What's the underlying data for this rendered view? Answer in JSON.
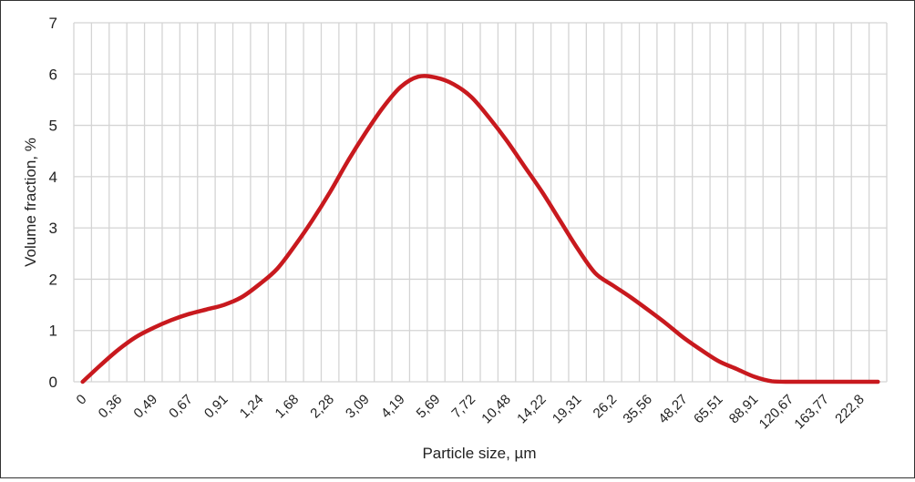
{
  "chart_data": {
    "type": "line",
    "title": "",
    "xlabel": "Particle size, µm",
    "ylabel": "Volume fraction, %",
    "ylim": [
      0,
      7
    ],
    "yticks": [
      "0",
      "1",
      "2",
      "3",
      "4",
      "5",
      "6",
      "7"
    ],
    "grid": true,
    "legend": "none",
    "tick_labels": [
      "0",
      "0,36",
      "0,49",
      "0,67",
      "0,91",
      "1,24",
      "1,68",
      "2,28",
      "3,09",
      "4,19",
      "5,69",
      "7,72",
      "10,48",
      "14,22",
      "19,31",
      "26,2",
      "35,56",
      "48,27",
      "65,51",
      "88,91",
      "120,67",
      "163,77",
      "222,8"
    ],
    "tick_label_every": 2,
    "series": [
      {
        "name": "Volume fraction",
        "color": "#c8191e",
        "values": [
          0,
          0.32,
          0.62,
          0.87,
          1.05,
          1.2,
          1.32,
          1.41,
          1.5,
          1.65,
          1.9,
          2.2,
          2.65,
          3.15,
          3.7,
          4.3,
          4.85,
          5.35,
          5.75,
          5.95,
          5.93,
          5.8,
          5.55,
          5.15,
          4.7,
          4.2,
          3.7,
          3.15,
          2.6,
          2.12,
          1.88,
          1.65,
          1.4,
          1.14,
          0.86,
          0.62,
          0.4,
          0.25,
          0.1,
          0.01,
          0,
          0,
          0,
          0,
          0,
          0
        ]
      }
    ]
  }
}
